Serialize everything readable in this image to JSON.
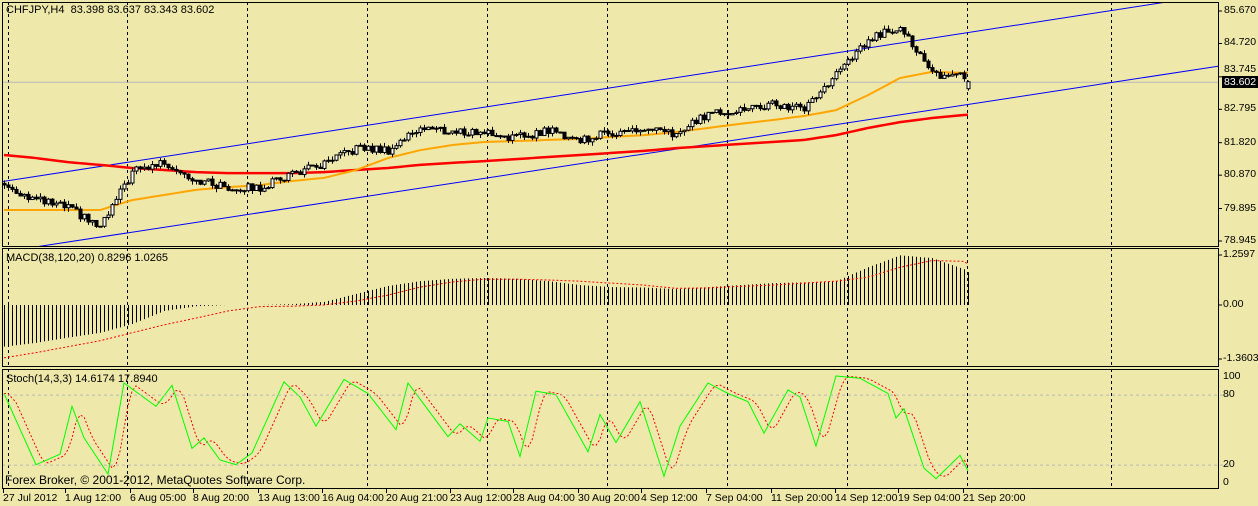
{
  "header": {
    "symbol": "CHFJPY,H4",
    "ohlc": "83.398 83.637 83.343 83.602"
  },
  "macd": {
    "label": "MACD(38,120,20) 0.8296 1.0265"
  },
  "stoch": {
    "label": "Stoch(14,3,3) 14.6174 17.8940"
  },
  "copyright": "Forex Broker, © 2001-2012, MetaQuotes Software Corp.",
  "price_axis": {
    "ticks": [
      "85.670",
      "84.720",
      "83.745",
      "82.795",
      "81.820",
      "80.870",
      "79.895",
      "78.945"
    ],
    "current_price": "83.602"
  },
  "macd_axis": {
    "ticks": [
      "1.2597",
      "0.00",
      "-1.3603"
    ]
  },
  "stoch_axis": {
    "ticks": [
      "100",
      "80",
      "20",
      "0"
    ]
  },
  "time_axis": {
    "ticks": [
      "27 Jul 2012",
      "1 Aug 12:00",
      "6 Aug 05:00",
      "8 Aug 20:00",
      "13 Aug 13:00",
      "16 Aug 04:00",
      "20 Aug 21:00",
      "23 Aug 12:00",
      "28 Aug 04:00",
      "30 Aug 20:00",
      "4 Sep 12:00",
      "7 Sep 04:00",
      "11 Sep 20:00",
      "14 Sep 12:00",
      "19 Sep 04:00",
      "21 Sep 20:00"
    ]
  },
  "colors": {
    "background": "#EEE8AA",
    "ma_fast": "#FFA500",
    "ma_slow": "#FF0000",
    "channel": "#0000FF",
    "stoch_main": "#00FF00",
    "signal": "#FF0000",
    "candle_bull": "#FFFFFF",
    "candle_bear": "#000000"
  },
  "chart_data": [
    {
      "type": "candlestick",
      "title": "CHFJPY,H4",
      "ylim": [
        78.945,
        85.67
      ],
      "last_bar": {
        "open": 83.398,
        "high": 83.637,
        "low": 83.343,
        "close": 83.602
      },
      "close_keypoints": [
        [
          0,
          80.58
        ],
        [
          8,
          80.14
        ],
        [
          16,
          79.91
        ],
        [
          24,
          79.32
        ],
        [
          32,
          80.96
        ],
        [
          40,
          81.25
        ],
        [
          48,
          80.73
        ],
        [
          56,
          80.5
        ],
        [
          64,
          80.5
        ],
        [
          72,
          80.93
        ],
        [
          80,
          81.17
        ],
        [
          88,
          81.66
        ],
        [
          96,
          81.6
        ],
        [
          104,
          82.28
        ],
        [
          112,
          82.13
        ],
        [
          120,
          82.13
        ],
        [
          128,
          81.96
        ],
        [
          136,
          82.19
        ],
        [
          144,
          81.9
        ],
        [
          152,
          82.13
        ],
        [
          160,
          82.19
        ],
        [
          168,
          82.05
        ],
        [
          176,
          82.69
        ],
        [
          184,
          82.78
        ],
        [
          192,
          82.92
        ],
        [
          200,
          82.83
        ],
        [
          208,
          83.8
        ],
        [
          216,
          84.82
        ],
        [
          224,
          85.26
        ],
        [
          232,
          83.8
        ],
        [
          240,
          83.8
        ],
        [
          241,
          83.602
        ]
      ],
      "ma_fast": [
        [
          0,
          79.85
        ],
        [
          8,
          79.85
        ],
        [
          16,
          79.85
        ],
        [
          24,
          79.85
        ],
        [
          32,
          80.14
        ],
        [
          40,
          80.29
        ],
        [
          48,
          80.44
        ],
        [
          56,
          80.52
        ],
        [
          64,
          80.58
        ],
        [
          72,
          80.7
        ],
        [
          80,
          80.79
        ],
        [
          88,
          81.02
        ],
        [
          96,
          81.37
        ],
        [
          104,
          81.6
        ],
        [
          112,
          81.75
        ],
        [
          120,
          81.84
        ],
        [
          128,
          81.87
        ],
        [
          136,
          81.9
        ],
        [
          144,
          81.93
        ],
        [
          152,
          81.99
        ],
        [
          160,
          82.04
        ],
        [
          168,
          82.13
        ],
        [
          176,
          82.25
        ],
        [
          184,
          82.37
        ],
        [
          192,
          82.48
        ],
        [
          200,
          82.6
        ],
        [
          208,
          82.77
        ],
        [
          216,
          83.21
        ],
        [
          224,
          83.71
        ],
        [
          232,
          83.89
        ],
        [
          240,
          83.86
        ]
      ],
      "ma_slow": [
        [
          0,
          81.46
        ],
        [
          8,
          81.37
        ],
        [
          16,
          81.25
        ],
        [
          24,
          81.17
        ],
        [
          32,
          81.08
        ],
        [
          40,
          81.02
        ],
        [
          48,
          80.96
        ],
        [
          56,
          80.93
        ],
        [
          64,
          80.93
        ],
        [
          72,
          80.93
        ],
        [
          80,
          80.96
        ],
        [
          88,
          81.02
        ],
        [
          96,
          81.08
        ],
        [
          104,
          81.17
        ],
        [
          112,
          81.23
        ],
        [
          120,
          81.28
        ],
        [
          128,
          81.34
        ],
        [
          136,
          81.4
        ],
        [
          144,
          81.46
        ],
        [
          152,
          81.52
        ],
        [
          160,
          81.58
        ],
        [
          168,
          81.66
        ],
        [
          176,
          81.72
        ],
        [
          184,
          81.78
        ],
        [
          192,
          81.84
        ],
        [
          200,
          81.9
        ],
        [
          208,
          82.04
        ],
        [
          216,
          82.25
        ],
        [
          224,
          82.42
        ],
        [
          232,
          82.54
        ],
        [
          240,
          82.63
        ]
      ],
      "channel_upper": [
        [
          0,
          80.69
        ],
        [
          240,
          85.02
        ]
      ],
      "channel_lower": [
        [
          0,
          78.63
        ],
        [
          240,
          82.92
        ]
      ]
    },
    {
      "type": "bar",
      "title": "MACD(38,120,20)",
      "ylim": [
        -1.3603,
        1.2597
      ],
      "histogram": [
        [
          0,
          -1.05
        ],
        [
          8,
          -0.95
        ],
        [
          16,
          -0.82
        ],
        [
          24,
          -0.7
        ],
        [
          32,
          -0.48
        ],
        [
          40,
          -0.15
        ],
        [
          48,
          -0.03
        ],
        [
          56,
          0
        ],
        [
          64,
          0
        ],
        [
          72,
          0.02
        ],
        [
          80,
          0.08
        ],
        [
          88,
          0.28
        ],
        [
          96,
          0.48
        ],
        [
          104,
          0.6
        ],
        [
          112,
          0.66
        ],
        [
          120,
          0.68
        ],
        [
          128,
          0.66
        ],
        [
          136,
          0.6
        ],
        [
          144,
          0.5
        ],
        [
          152,
          0.45
        ],
        [
          160,
          0.44
        ],
        [
          168,
          0.4
        ],
        [
          176,
          0.45
        ],
        [
          184,
          0.5
        ],
        [
          192,
          0.55
        ],
        [
          200,
          0.57
        ],
        [
          208,
          0.6
        ],
        [
          216,
          0.95
        ],
        [
          224,
          1.25
        ],
        [
          232,
          1.18
        ],
        [
          240,
          0.9
        ],
        [
          241,
          0.8296
        ]
      ],
      "signal": [
        [
          0,
          -1.33
        ],
        [
          8,
          -1.2
        ],
        [
          16,
          -1.05
        ],
        [
          24,
          -0.9
        ],
        [
          32,
          -0.7
        ],
        [
          40,
          -0.5
        ],
        [
          48,
          -0.33
        ],
        [
          56,
          -0.15
        ],
        [
          64,
          -0.04
        ],
        [
          72,
          -0.03
        ],
        [
          80,
          0
        ],
        [
          88,
          0.1
        ],
        [
          96,
          0.25
        ],
        [
          104,
          0.45
        ],
        [
          112,
          0.58
        ],
        [
          120,
          0.65
        ],
        [
          128,
          0.65
        ],
        [
          136,
          0.63
        ],
        [
          144,
          0.6
        ],
        [
          152,
          0.55
        ],
        [
          160,
          0.5
        ],
        [
          168,
          0.42
        ],
        [
          176,
          0.43
        ],
        [
          184,
          0.47
        ],
        [
          192,
          0.5
        ],
        [
          200,
          0.55
        ],
        [
          208,
          0.6
        ],
        [
          216,
          0.7
        ],
        [
          224,
          0.95
        ],
        [
          232,
          1.12
        ],
        [
          240,
          1.1
        ],
        [
          241,
          1.0265
        ]
      ]
    },
    {
      "type": "line",
      "title": "Stoch(14,3,3)",
      "ylim": [
        0,
        100
      ],
      "levels": [
        80,
        20
      ],
      "main": [
        [
          0,
          81
        ],
        [
          8,
          20
        ],
        [
          14,
          29
        ],
        [
          17,
          70
        ],
        [
          20,
          43
        ],
        [
          26,
          12
        ],
        [
          30,
          90
        ],
        [
          38,
          70
        ],
        [
          42,
          88
        ],
        [
          47,
          34
        ],
        [
          50,
          43
        ],
        [
          54,
          24
        ],
        [
          58,
          20
        ],
        [
          62,
          30
        ],
        [
          70,
          91
        ],
        [
          74,
          78
        ],
        [
          78,
          53
        ],
        [
          85,
          93
        ],
        [
          91,
          81
        ],
        [
          98,
          50
        ],
        [
          101,
          90
        ],
        [
          111,
          44
        ],
        [
          114,
          55
        ],
        [
          119,
          40
        ],
        [
          121,
          60
        ],
        [
          126,
          57
        ],
        [
          129,
          27
        ],
        [
          133,
          83
        ],
        [
          138,
          80
        ],
        [
          146,
          31
        ],
        [
          149,
          63
        ],
        [
          153,
          39
        ],
        [
          159,
          74
        ],
        [
          165,
          10
        ],
        [
          169,
          53
        ],
        [
          176,
          90
        ],
        [
          181,
          81
        ],
        [
          186,
          74
        ],
        [
          190,
          47
        ],
        [
          196,
          84
        ],
        [
          199,
          78
        ],
        [
          203,
          36
        ],
        [
          208,
          96
        ],
        [
          214,
          94
        ],
        [
          221,
          81
        ],
        [
          223,
          60
        ],
        [
          225,
          68
        ],
        [
          230,
          17
        ],
        [
          233,
          8
        ],
        [
          239,
          28
        ],
        [
          241,
          14.6174
        ]
      ],
      "signal_last": 17.894
    }
  ]
}
